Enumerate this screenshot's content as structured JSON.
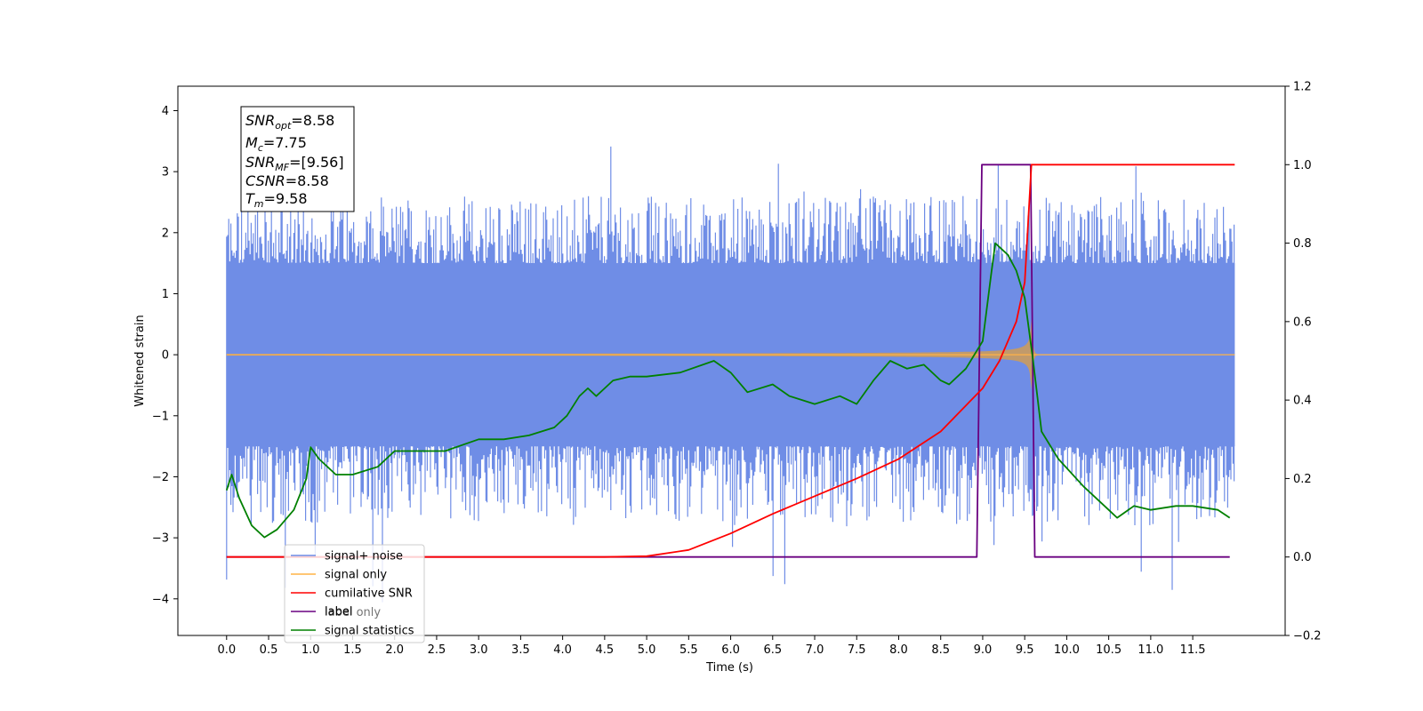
{
  "chart_data": {
    "type": "line",
    "title": "",
    "xlabel": "Time (s)",
    "ylabel": "Whitened strain",
    "xlim": [
      -0.58,
      12.6
    ],
    "ylim": [
      -4.6,
      4.4
    ],
    "y2lim": [
      -0.2,
      1.2
    ],
    "xticks": [
      "0.0",
      "0.5",
      "1.0",
      "1.5",
      "2.0",
      "2.5",
      "3.0",
      "3.5",
      "4.0",
      "4.5",
      "5.0",
      "5.5",
      "6.0",
      "6.5",
      "7.0",
      "7.5",
      "8.0",
      "8.5",
      "9.0",
      "9.5",
      "10.0",
      "10.5",
      "11.0",
      "11.5"
    ],
    "yticks": [
      "4",
      "3",
      "2",
      "1",
      "0",
      "−1",
      "−2",
      "−3",
      "−4"
    ],
    "y2ticks": [
      "1.2",
      "1.0",
      "0.8",
      "0.6",
      "0.4",
      "0.2",
      "0.0",
      "−0.2"
    ],
    "grid": false,
    "legend_position": "lower-left",
    "colors": {
      "signal_noise": "#6f8de6",
      "signal_only": "#ffb347",
      "cumulative_snr": "#ff0000",
      "label": "#6a0080",
      "signal_statistics": "#008000",
      "signal_fill": "#c19a6b"
    },
    "series": [
      {
        "name": "signal+ noise",
        "axis": "left",
        "kind": "noise-band",
        "x_range": [
          0.0,
          12.0
        ],
        "typical_band": [
          -1.5,
          1.5
        ],
        "envelope_max": [
          2.6,
          3.6
        ],
        "envelope_min": [
          -2.8,
          -4.1
        ]
      },
      {
        "name": "signal only",
        "axis": "left",
        "kind": "chirp",
        "x_range": [
          0.0,
          12.0
        ],
        "merger_time": 9.58,
        "peak_amplitude": 0.6
      },
      {
        "name": "cumilative SNR",
        "axis": "right",
        "x": [
          0.0,
          4.5,
          5.0,
          5.5,
          6.0,
          6.5,
          7.0,
          7.5,
          8.0,
          8.5,
          9.0,
          9.2,
          9.4,
          9.5,
          9.58,
          10.0,
          11.0,
          12.0
        ],
        "y": [
          0.0,
          0.0,
          0.002,
          0.018,
          0.06,
          0.11,
          0.155,
          0.2,
          0.25,
          0.32,
          0.43,
          0.5,
          0.6,
          0.7,
          1.0,
          1.0,
          1.0,
          1.0
        ]
      },
      {
        "name": "label",
        "axis": "right",
        "x": [
          0.0,
          8.93,
          8.99,
          9.57,
          9.62,
          11.94
        ],
        "y": [
          0.0,
          0.0,
          1.0,
          1.0,
          0.0,
          0.0
        ]
      },
      {
        "name": "label only",
        "axis": "right",
        "x": [],
        "y": []
      },
      {
        "name": "signal statistics",
        "axis": "right",
        "x": [
          0.0,
          0.06,
          0.15,
          0.3,
          0.45,
          0.6,
          0.8,
          0.95,
          1.0,
          1.1,
          1.3,
          1.5,
          1.8,
          2.0,
          2.3,
          2.6,
          3.0,
          3.3,
          3.6,
          3.9,
          4.05,
          4.2,
          4.3,
          4.4,
          4.5,
          4.6,
          4.8,
          5.0,
          5.4,
          5.8,
          6.0,
          6.2,
          6.5,
          6.7,
          7.0,
          7.3,
          7.5,
          7.7,
          7.9,
          8.1,
          8.3,
          8.5,
          8.6,
          8.8,
          9.0,
          9.1,
          9.15,
          9.3,
          9.4,
          9.5,
          9.6,
          9.7,
          9.9,
          10.2,
          10.5,
          10.6,
          10.8,
          11.0,
          11.3,
          11.5,
          11.8,
          11.94
        ],
        "y": [
          0.17,
          0.21,
          0.15,
          0.08,
          0.05,
          0.07,
          0.12,
          0.2,
          0.28,
          0.25,
          0.21,
          0.21,
          0.23,
          0.27,
          0.27,
          0.27,
          0.3,
          0.3,
          0.31,
          0.33,
          0.36,
          0.41,
          0.43,
          0.41,
          0.43,
          0.45,
          0.46,
          0.46,
          0.47,
          0.5,
          0.47,
          0.42,
          0.44,
          0.41,
          0.39,
          0.41,
          0.39,
          0.45,
          0.5,
          0.48,
          0.49,
          0.45,
          0.44,
          0.48,
          0.55,
          0.72,
          0.8,
          0.77,
          0.73,
          0.66,
          0.5,
          0.32,
          0.25,
          0.18,
          0.12,
          0.1,
          0.13,
          0.12,
          0.13,
          0.13,
          0.12,
          0.1
        ]
      }
    ],
    "legend": [
      "signal+ noise",
      "signal only",
      "cumilative SNR",
      "label",
      "label only",
      "signal statistics"
    ],
    "annotation": {
      "snr_opt": {
        "var": "SNR",
        "sub": "opt",
        "value": "=8.58"
      },
      "mc": {
        "var": "M",
        "sub": "c",
        "value": "=7.75"
      },
      "snr_mf": {
        "var": "SNR",
        "sub": "MF",
        "value": "=[9.56]"
      },
      "csnr": {
        "var": "CSNR",
        "sub": "",
        "value": "=8.58"
      },
      "tm": {
        "var": "T",
        "sub": "m",
        "value": "=9.58"
      }
    }
  }
}
